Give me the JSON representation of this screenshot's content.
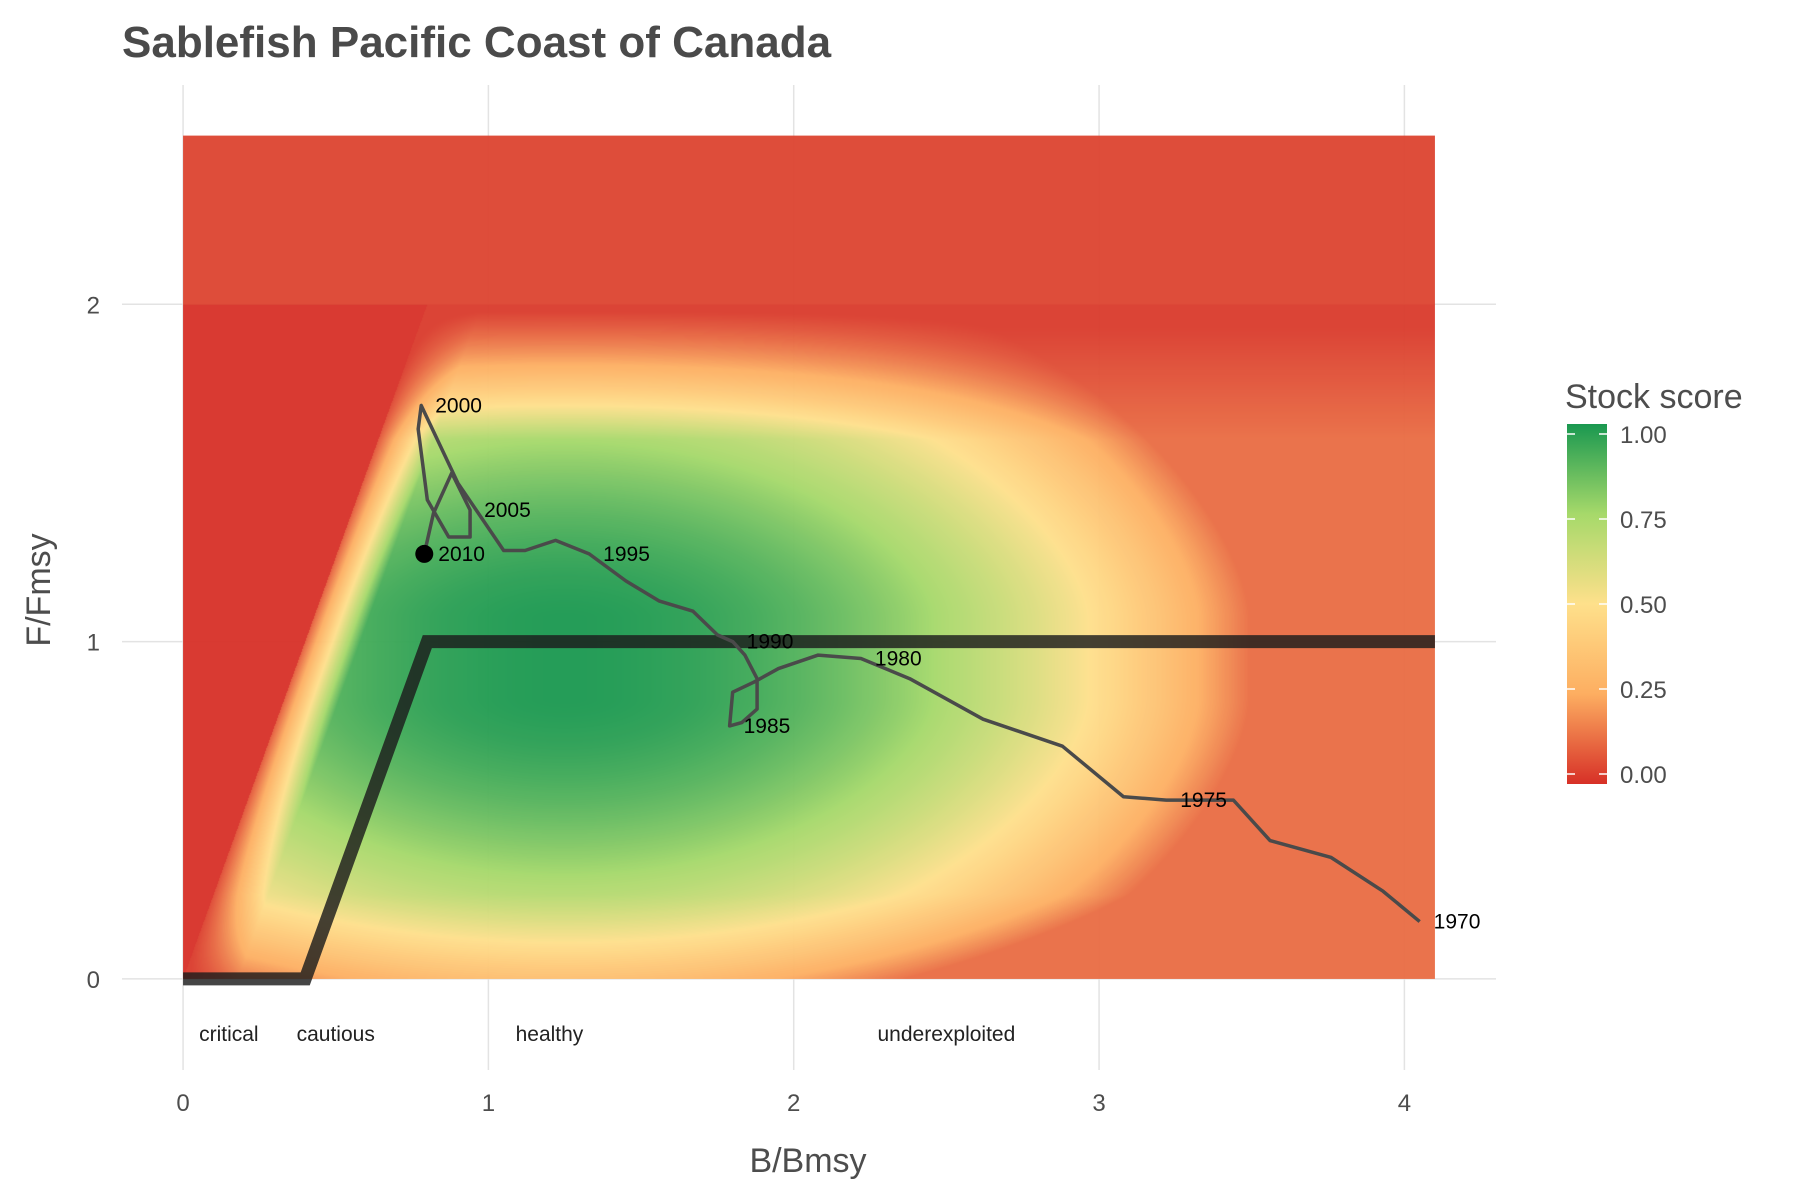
{
  "chart_data": {
    "type": "line",
    "title": "Sablefish Pacific Coast of Canada",
    "xlabel": "B/Bmsy",
    "ylabel": "F/Fmsy",
    "xlim": [
      -0.2,
      4.3
    ],
    "ylim": [
      -0.27,
      2.65
    ],
    "x_ticks": [
      {
        "value": 0,
        "label": "0"
      },
      {
        "value": 1,
        "label": "1"
      },
      {
        "value": 2,
        "label": "2"
      },
      {
        "value": 3,
        "label": "3"
      },
      {
        "value": 4,
        "label": "4"
      }
    ],
    "y_ticks": [
      {
        "value": 0,
        "label": "0"
      },
      {
        "value": 1,
        "label": "1"
      },
      {
        "value": 2,
        "label": "2"
      }
    ],
    "grid": true,
    "heatmap_extent": {
      "x": [
        0,
        4.1
      ],
      "y": [
        0,
        2.5
      ]
    },
    "reference_line": [
      {
        "x": 0,
        "y": 0
      },
      {
        "x": 0.4,
        "y": 0
      },
      {
        "x": 0.8,
        "y": 1
      },
      {
        "x": 4.1,
        "y": 1
      }
    ],
    "trajectory": [
      {
        "year": 1970,
        "x": 4.05,
        "y": 0.17
      },
      {
        "year": 1971,
        "x": 3.93,
        "y": 0.26
      },
      {
        "year": 1972,
        "x": 3.76,
        "y": 0.36
      },
      {
        "year": 1973,
        "x": 3.56,
        "y": 0.41
      },
      {
        "year": 1974,
        "x": 3.44,
        "y": 0.53
      },
      {
        "year": 1975,
        "x": 3.22,
        "y": 0.53
      },
      {
        "year": 1976,
        "x": 3.08,
        "y": 0.54
      },
      {
        "year": 1977,
        "x": 2.88,
        "y": 0.69
      },
      {
        "year": 1978,
        "x": 2.62,
        "y": 0.77
      },
      {
        "year": 1979,
        "x": 2.38,
        "y": 0.89
      },
      {
        "year": 1980,
        "x": 2.22,
        "y": 0.95
      },
      {
        "year": 1981,
        "x": 2.08,
        "y": 0.96
      },
      {
        "year": 1982,
        "x": 1.95,
        "y": 0.92
      },
      {
        "year": 1983,
        "x": 1.87,
        "y": 0.88
      },
      {
        "year": 1984,
        "x": 1.8,
        "y": 0.85
      },
      {
        "year": 1985,
        "x": 1.79,
        "y": 0.75
      },
      {
        "year": 1986,
        "x": 1.83,
        "y": 0.76
      },
      {
        "year": 1987,
        "x": 1.88,
        "y": 0.8
      },
      {
        "year": 1988,
        "x": 1.88,
        "y": 0.89
      },
      {
        "year": 1989,
        "x": 1.84,
        "y": 0.96
      },
      {
        "year": 1990,
        "x": 1.8,
        "y": 1.0
      },
      {
        "year": 1991,
        "x": 1.75,
        "y": 1.02
      },
      {
        "year": 1992,
        "x": 1.67,
        "y": 1.09
      },
      {
        "year": 1993,
        "x": 1.56,
        "y": 1.12
      },
      {
        "year": 1994,
        "x": 1.45,
        "y": 1.18
      },
      {
        "year": 1995,
        "x": 1.33,
        "y": 1.26
      },
      {
        "year": 1996,
        "x": 1.22,
        "y": 1.3
      },
      {
        "year": 1997,
        "x": 1.12,
        "y": 1.27
      },
      {
        "year": 1998,
        "x": 1.05,
        "y": 1.27
      },
      {
        "year": 1999,
        "x": 0.9,
        "y": 1.47
      },
      {
        "year": 2000,
        "x": 0.78,
        "y": 1.7
      },
      {
        "year": 2001,
        "x": 0.77,
        "y": 1.63
      },
      {
        "year": 2002,
        "x": 0.8,
        "y": 1.42
      },
      {
        "year": 2003,
        "x": 0.87,
        "y": 1.31
      },
      {
        "year": 2004,
        "x": 0.94,
        "y": 1.31
      },
      {
        "year": 2005,
        "x": 0.94,
        "y": 1.39
      },
      {
        "year": 2006,
        "x": 0.88,
        "y": 1.5
      },
      {
        "year": 2007,
        "x": 0.82,
        "y": 1.38
      },
      {
        "year": 2010,
        "x": 0.79,
        "y": 1.26
      }
    ],
    "labelled_years": [
      "1970",
      "1975",
      "1980",
      "1985",
      "1990",
      "1995",
      "2000",
      "2005",
      "2010"
    ],
    "zone_labels": [
      {
        "text": "critical",
        "x": 0.15
      },
      {
        "text": "cautious",
        "x": 0.5
      },
      {
        "text": "healthy",
        "x": 1.2
      },
      {
        "text": "underexploited",
        "x": 2.5
      }
    ],
    "legend": {
      "title": "Stock score",
      "position": "right",
      "min": 0,
      "max": 1,
      "ticks": [
        {
          "value": 0,
          "label": "0.00"
        },
        {
          "value": 0.25,
          "label": "0.25"
        },
        {
          "value": 0.5,
          "label": "0.50"
        },
        {
          "value": 0.75,
          "label": "0.75"
        },
        {
          "value": 1,
          "label": "1.00"
        }
      ]
    },
    "colors": {
      "score_0": "#d73027",
      "score_025": "#fdae61",
      "score_05": "#fee08b",
      "score_075": "#a6d96a",
      "score_1": "#1a9850",
      "reference_line": "#1c1c1c",
      "trajectory": "#4a4a4a",
      "current_point": "#000000"
    }
  }
}
